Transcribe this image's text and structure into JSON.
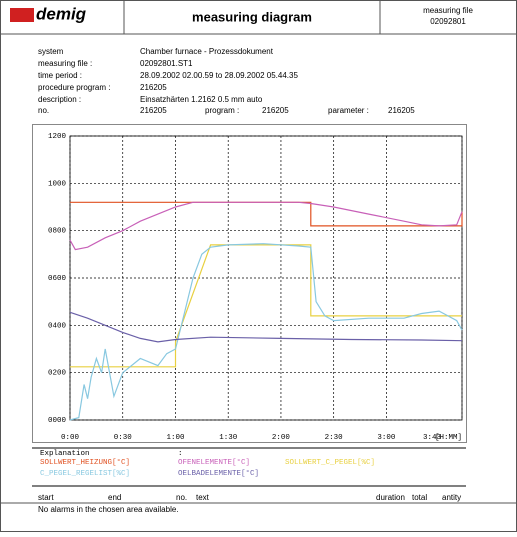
{
  "header": {
    "logo": "demig",
    "title": "measuring diagram",
    "file_label": "measuring file",
    "file_no": "02092801"
  },
  "info": [
    [
      "system",
      "Chamber furnace - Prozessdokument"
    ],
    [
      "measuring file :",
      "02092801.ST1"
    ],
    [
      "time period :",
      "28.09.2002 02.00.59 to 28.09.2002 05.44.35"
    ],
    [
      "procedure program :",
      "216205"
    ],
    [
      "description :",
      "Einsatzhärten 1.2162 0.5 mm auto"
    ]
  ],
  "info_no": {
    "no_label": "no.",
    "no": "216205",
    "program_label": "program :",
    "program": "216205",
    "parameter_label": "parameter :",
    "parameter": "216205"
  },
  "chart_data": {
    "type": "line",
    "x_label": "[H:MM]",
    "legend_title": "Explanation",
    "legend_colon": ":",
    "xlim": [
      0,
      223
    ],
    "ylim": [
      0,
      1200
    ],
    "grid": true,
    "xticks": [
      {
        "value": 0,
        "label": "0:00"
      },
      {
        "value": 30,
        "label": "0:30"
      },
      {
        "value": 60,
        "label": "1:00"
      },
      {
        "value": 90,
        "label": "1:30"
      },
      {
        "value": 120,
        "label": "2:00"
      },
      {
        "value": 150,
        "label": "2:30"
      },
      {
        "value": 180,
        "label": "3:00"
      },
      {
        "value": 223,
        "label": "3:43"
      }
    ],
    "yticks": [
      {
        "value": 0,
        "label": "0000"
      },
      {
        "value": 200,
        "label": "0200"
      },
      {
        "value": 400,
        "label": "0400"
      },
      {
        "value": 600,
        "label": "0600"
      },
      {
        "value": 800,
        "label": "0800"
      },
      1000,
      1200
    ],
    "series": [
      {
        "name": "SOLLWERT_HEIZUNG[°C]",
        "color": "#e05020",
        "x": [
          0,
          137,
          137,
          223,
          223
        ],
        "values": [
          920,
          920,
          820,
          820,
          880
        ]
      },
      {
        "name": "OFENELEMENTE[°C]",
        "color": "#c860b8",
        "x": [
          0,
          3,
          10,
          20,
          30,
          40,
          50,
          60,
          70,
          90,
          110,
          130,
          137,
          150,
          170,
          190,
          200,
          210,
          220,
          223
        ],
        "values": [
          760,
          720,
          730,
          770,
          800,
          840,
          870,
          900,
          920,
          920,
          920,
          920,
          915,
          900,
          870,
          840,
          825,
          820,
          825,
          880
        ]
      },
      {
        "name": "SOLLWERT_C_PEGEL[%C]",
        "color": "#e8d040",
        "x": [
          0,
          60,
          60,
          80,
          137,
          137,
          223
        ],
        "values": [
          225,
          225,
          330,
          740,
          740,
          440,
          440
        ]
      },
      {
        "name": "C_PEGEL_REGELIST[%C]",
        "color": "#88c8e0",
        "x": [
          0,
          5,
          8,
          10,
          12,
          15,
          18,
          20,
          25,
          30,
          40,
          50,
          55,
          60,
          65,
          70,
          75,
          80,
          90,
          110,
          130,
          137,
          140,
          145,
          150,
          170,
          190,
          200,
          210,
          220,
          223
        ],
        "values": [
          0,
          10,
          150,
          90,
          180,
          260,
          200,
          300,
          100,
          200,
          260,
          230,
          280,
          300,
          450,
          600,
          700,
          730,
          740,
          745,
          735,
          730,
          500,
          440,
          420,
          430,
          430,
          450,
          460,
          420,
          380
        ]
      },
      {
        "name": "OELBADELEMENTE[°C]",
        "color": "#6a60a8",
        "x": [
          0,
          10,
          20,
          30,
          40,
          50,
          60,
          80,
          120,
          160,
          200,
          223
        ],
        "values": [
          455,
          430,
          400,
          370,
          345,
          330,
          340,
          350,
          345,
          340,
          338,
          335
        ]
      }
    ]
  },
  "alarms": {
    "columns": [
      "start",
      "end",
      "no.",
      "text",
      "duration",
      "total",
      "antity"
    ],
    "message": "No alarms in the chosen area available."
  }
}
